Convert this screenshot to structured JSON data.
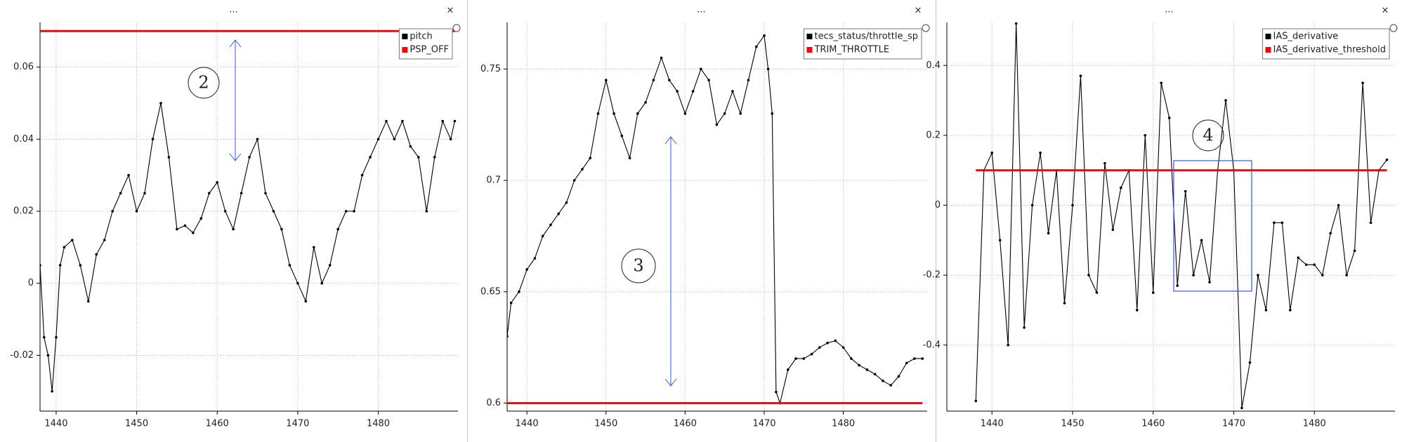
{
  "chart_data": [
    {
      "type": "line",
      "toolbar": {
        "menu": "...",
        "close": "×"
      },
      "x": [
        1438,
        1438.5,
        1439,
        1439.5,
        1440,
        1440.5,
        1441,
        1442,
        1443,
        1444,
        1445,
        1446,
        1447,
        1448,
        1449,
        1450,
        1451,
        1452,
        1453,
        1454,
        1455,
        1456,
        1457,
        1458,
        1459,
        1460,
        1461,
        1462,
        1463,
        1464,
        1465,
        1466,
        1467,
        1468,
        1469,
        1470,
        1471,
        1472,
        1473,
        1474,
        1475,
        1476,
        1477,
        1478,
        1479,
        1480,
        1481,
        1482,
        1483,
        1484,
        1485,
        1486,
        1487,
        1488,
        1489,
        1489.5
      ],
      "series": [
        {
          "name": "pitch",
          "color": "#000000",
          "values": [
            0.005,
            -0.015,
            -0.02,
            -0.03,
            -0.015,
            0.005,
            0.01,
            0.012,
            0.005,
            -0.005,
            0.008,
            0.012,
            0.02,
            0.025,
            0.03,
            0.02,
            0.025,
            0.04,
            0.05,
            0.035,
            0.015,
            0.016,
            0.014,
            0.018,
            0.025,
            0.028,
            0.02,
            0.015,
            0.025,
            0.035,
            0.04,
            0.025,
            0.02,
            0.015,
            0.005,
            0.0,
            -0.005,
            0.01,
            0.0,
            0.005,
            0.015,
            0.02,
            0.02,
            0.03,
            0.035,
            0.04,
            0.045,
            0.04,
            0.045,
            0.038,
            0.035,
            0.02,
            0.035,
            0.045,
            0.04,
            0.045
          ]
        },
        {
          "name": "PSP_OFF",
          "color": "#ff0000",
          "values": [
            0.07,
            0.07,
            0.07,
            0.07,
            0.07,
            0.07,
            0.07,
            0.07,
            0.07,
            0.07,
            0.07,
            0.07,
            0.07,
            0.07,
            0.07,
            0.07,
            0.07,
            0.07,
            0.07,
            0.07,
            0.07,
            0.07,
            0.07,
            0.07,
            0.07,
            0.07,
            0.07,
            0.07,
            0.07,
            0.07,
            0.07,
            0.07,
            0.07,
            0.07,
            0.07,
            0.07,
            0.07,
            0.07,
            0.07,
            0.07,
            0.07,
            0.07,
            0.07,
            0.07,
            0.07,
            0.07,
            0.07,
            0.07,
            0.07,
            0.07,
            0.07,
            0.07,
            0.07,
            0.07,
            0.07,
            0.07
          ]
        }
      ],
      "xlim": [
        1438,
        1489.9
      ],
      "ylim": [
        -0.0355,
        0.0724
      ],
      "xticks": [
        1440,
        1450,
        1460,
        1470,
        1480
      ],
      "yticks": [
        -0.02,
        0,
        0.02,
        0.04,
        0.06
      ],
      "grid": true,
      "legend": "upper right",
      "annotations": [
        "2"
      ]
    },
    {
      "type": "line",
      "toolbar": {
        "menu": "...",
        "close": "×"
      },
      "x": [
        1437.5,
        1438,
        1439,
        1440,
        1441,
        1442,
        1443,
        1444,
        1445,
        1446,
        1447,
        1448,
        1449,
        1450,
        1451,
        1452,
        1453,
        1454,
        1455,
        1456,
        1457,
        1458,
        1459,
        1460,
        1461,
        1462,
        1463,
        1464,
        1465,
        1466,
        1467,
        1468,
        1469,
        1470,
        1470.5,
        1471,
        1471.5,
        1472,
        1473,
        1474,
        1475,
        1476,
        1477,
        1478,
        1479,
        1480,
        1481,
        1482,
        1483,
        1484,
        1485,
        1486,
        1487,
        1488,
        1489,
        1490
      ],
      "series": [
        {
          "name": "tecs_status/throttle_sp",
          "color": "#000000",
          "values": [
            0.63,
            0.645,
            0.65,
            0.66,
            0.665,
            0.675,
            0.68,
            0.685,
            0.69,
            0.7,
            0.705,
            0.71,
            0.73,
            0.745,
            0.73,
            0.72,
            0.71,
            0.73,
            0.735,
            0.745,
            0.755,
            0.745,
            0.74,
            0.73,
            0.74,
            0.75,
            0.745,
            0.725,
            0.73,
            0.74,
            0.73,
            0.745,
            0.76,
            0.765,
            0.75,
            0.73,
            0.605,
            0.6,
            0.615,
            0.62,
            0.62,
            0.622,
            0.625,
            0.627,
            0.628,
            0.625,
            0.62,
            0.617,
            0.615,
            0.613,
            0.61,
            0.608,
            0.612,
            0.618,
            0.62,
            0.62
          ]
        },
        {
          "name": "TRIM_THROTTLE",
          "color": "#ff0000",
          "values": [
            0.6,
            0.6,
            0.6,
            0.6,
            0.6,
            0.6,
            0.6,
            0.6,
            0.6,
            0.6,
            0.6,
            0.6,
            0.6,
            0.6,
            0.6,
            0.6,
            0.6,
            0.6,
            0.6,
            0.6,
            0.6,
            0.6,
            0.6,
            0.6,
            0.6,
            0.6,
            0.6,
            0.6,
            0.6,
            0.6,
            0.6,
            0.6,
            0.6,
            0.6,
            0.6,
            0.6,
            0.6,
            0.6,
            0.6,
            0.6,
            0.6,
            0.6,
            0.6,
            0.6,
            0.6,
            0.6,
            0.6,
            0.6,
            0.6,
            0.6,
            0.6,
            0.6,
            0.6,
            0.6,
            0.6,
            0.6
          ]
        }
      ],
      "xlim": [
        1437.5,
        1490.6
      ],
      "ylim": [
        0.5964,
        0.7709
      ],
      "xticks": [
        1440,
        1450,
        1460,
        1470,
        1480
      ],
      "yticks": [
        0.6,
        0.65,
        0.7,
        0.75
      ],
      "grid": true,
      "legend": "upper right",
      "annotations": [
        "3"
      ]
    },
    {
      "type": "line",
      "toolbar": {
        "menu": "...",
        "close": "×"
      },
      "x": [
        1438,
        1439,
        1440,
        1441,
        1442,
        1443,
        1444,
        1445,
        1446,
        1447,
        1448,
        1449,
        1450,
        1451,
        1452,
        1453,
        1454,
        1455,
        1456,
        1457,
        1458,
        1459,
        1460,
        1461,
        1462,
        1463,
        1464,
        1465,
        1466,
        1467,
        1468,
        1469,
        1470,
        1471,
        1472,
        1473,
        1474,
        1475,
        1476,
        1477,
        1478,
        1479,
        1480,
        1481,
        1482,
        1483,
        1484,
        1485,
        1486,
        1487,
        1488,
        1489
      ],
      "series": [
        {
          "name": "IAS_derivative",
          "color": "#000000",
          "values": [
            -0.56,
            0.1,
            0.15,
            -0.1,
            -0.4,
            0.52,
            -0.35,
            0.0,
            0.15,
            -0.08,
            0.1,
            -0.28,
            0.0,
            0.37,
            -0.2,
            -0.25,
            0.12,
            -0.07,
            0.05,
            0.1,
            -0.3,
            0.2,
            -0.25,
            0.35,
            0.25,
            -0.23,
            0.04,
            -0.2,
            -0.1,
            -0.22,
            0.1,
            0.3,
            0.1,
            -0.58,
            -0.45,
            -0.2,
            -0.3,
            -0.05,
            -0.05,
            -0.3,
            -0.15,
            -0.17,
            -0.17,
            -0.2,
            -0.08,
            0.0,
            -0.2,
            -0.13,
            0.35,
            -0.05,
            0.1,
            0.13
          ]
        },
        {
          "name": "IAS_derivative_threshold",
          "color": "#ff0000",
          "values": [
            0.1,
            0.1,
            0.1,
            0.1,
            0.1,
            0.1,
            0.1,
            0.1,
            0.1,
            0.1,
            0.1,
            0.1,
            0.1,
            0.1,
            0.1,
            0.1,
            0.1,
            0.1,
            0.1,
            0.1,
            0.1,
            0.1,
            0.1,
            0.1,
            0.1,
            0.1,
            0.1,
            0.1,
            0.1,
            0.1,
            0.1,
            0.1,
            0.1,
            0.1,
            0.1,
            0.1,
            0.1,
            0.1,
            0.1,
            0.1,
            0.1,
            0.1,
            0.1,
            0.1,
            0.1,
            0.1,
            0.1,
            0.1,
            0.1,
            0.1,
            0.1,
            0.1
          ]
        }
      ],
      "xlim": [
        1434.4,
        1490
      ],
      "ylim": [
        -0.589,
        0.523
      ],
      "xticks": [
        1440,
        1450,
        1460,
        1470,
        1480
      ],
      "yticks": [
        -0.4,
        -0.2,
        0,
        0.2,
        0.4
      ],
      "grid": true,
      "legend": "upper right",
      "annotations": [
        "4"
      ]
    }
  ]
}
